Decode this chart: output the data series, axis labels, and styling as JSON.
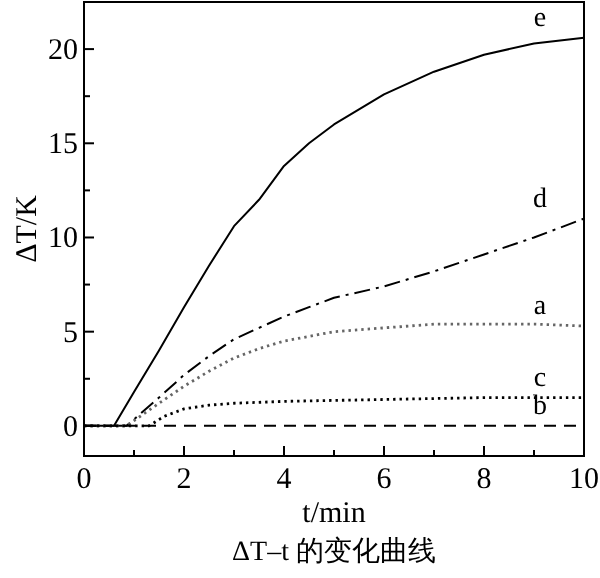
{
  "chart_data": {
    "type": "line",
    "xlabel": "t/min",
    "ylabel": "ΔT/K",
    "annotations": [
      "ΔT–t 的变化曲线"
    ],
    "xlim": [
      0,
      10
    ],
    "ylim": [
      -1.6,
      22.5
    ],
    "xticks": [
      0,
      {
        "value": 1,
        "label": null
      },
      2,
      {
        "value": 3,
        "label": null
      },
      4,
      {
        "value": 5,
        "label": null
      },
      6,
      {
        "value": 7,
        "label": null
      },
      8,
      {
        "value": 9,
        "label": null
      },
      10
    ],
    "yticks": [
      0,
      {
        "value": 2.5,
        "label": null
      },
      5,
      {
        "value": 7.5,
        "label": null
      },
      10,
      {
        "value": 12.5,
        "label": null
      },
      15,
      {
        "value": 17.5,
        "label": null
      },
      20
    ],
    "series": [
      {
        "name": "e",
        "color": "#000000",
        "line_style": "solid",
        "x": [
          0,
          0.6,
          1,
          1.5,
          2,
          2.5,
          3,
          3.5,
          4,
          4.5,
          5,
          6,
          7,
          8,
          9,
          10
        ],
        "values": [
          0,
          0,
          1.8,
          4.0,
          6.3,
          8.5,
          10.6,
          12.0,
          13.8,
          15.0,
          16.0,
          17.6,
          18.8,
          19.7,
          20.3,
          20.6
        ]
      },
      {
        "name": "d",
        "color": "#000000",
        "line_style": "dashdot",
        "x": [
          0,
          0.85,
          1.5,
          2,
          2.5,
          3,
          3.5,
          4,
          4.5,
          5,
          6,
          7,
          8,
          9,
          10
        ],
        "values": [
          0,
          0,
          1.5,
          2.7,
          3.7,
          4.6,
          5.2,
          5.8,
          6.3,
          6.8,
          7.4,
          8.2,
          9.1,
          10.0,
          11.0
        ]
      },
      {
        "name": "a",
        "color": "#666666",
        "line_style": "dotted",
        "x": [
          0,
          0.85,
          1.5,
          2,
          2.5,
          3,
          3.5,
          4,
          5,
          6,
          7,
          8,
          9,
          10
        ],
        "values": [
          0,
          0,
          1.2,
          2.1,
          2.9,
          3.6,
          4.1,
          4.5,
          5.0,
          5.2,
          5.4,
          5.4,
          5.4,
          5.3
        ]
      },
      {
        "name": "c",
        "color": "#000000",
        "line_style": "dotted",
        "x": [
          0,
          1.3,
          1.6,
          2,
          2.5,
          3,
          4,
          6,
          8,
          10
        ],
        "values": [
          0,
          0,
          0.5,
          0.9,
          1.1,
          1.2,
          1.3,
          1.4,
          1.5,
          1.5
        ]
      },
      {
        "name": "b",
        "color": "#000000",
        "line_style": "dashed",
        "x": [
          0,
          10
        ],
        "values": [
          0,
          0
        ]
      }
    ]
  }
}
